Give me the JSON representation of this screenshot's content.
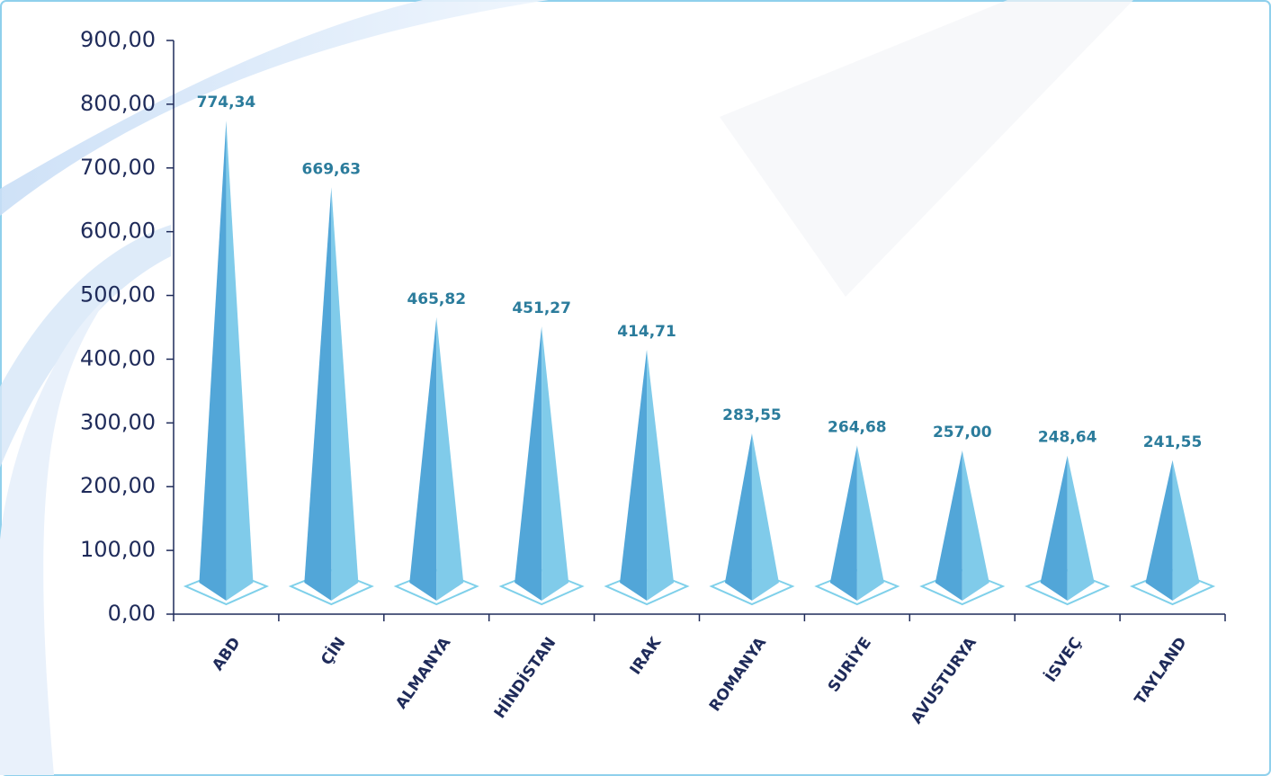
{
  "chart_data": {
    "type": "pyramid",
    "categories": [
      "ABD",
      "ÇİN",
      "ALMANYA",
      "HİNDİSTAN",
      "IRAK",
      "ROMANYA",
      "SURİYE",
      "AVUSTURYA",
      "İSVEÇ",
      "TAYLAND"
    ],
    "values": [
      774.34,
      669.63,
      465.82,
      451.27,
      414.71,
      283.55,
      264.68,
      257.0,
      248.64,
      241.55
    ],
    "value_labels": [
      "774,34",
      "669,63",
      "465,82",
      "451,27",
      "414,71",
      "283,55",
      "264,68",
      "257,00",
      "248,64",
      "241,55"
    ],
    "color": "#52a6d8",
    "highlight_color": "#80cbea",
    "base_color": "#7fd0ea",
    "ylim": [
      0,
      900
    ],
    "yticks": [
      {
        "value": 0,
        "label": "0,00"
      },
      {
        "value": 100,
        "label": "100,00"
      },
      {
        "value": 200,
        "label": "200,00"
      },
      {
        "value": 300,
        "label": "300,00"
      },
      {
        "value": 400,
        "label": "400,00"
      },
      {
        "value": 500,
        "label": "500,00"
      },
      {
        "value": 600,
        "label": "600,00"
      },
      {
        "value": 700,
        "label": "700,00"
      },
      {
        "value": 800,
        "label": "800,00"
      },
      {
        "value": 900,
        "label": "900,00"
      }
    ]
  }
}
